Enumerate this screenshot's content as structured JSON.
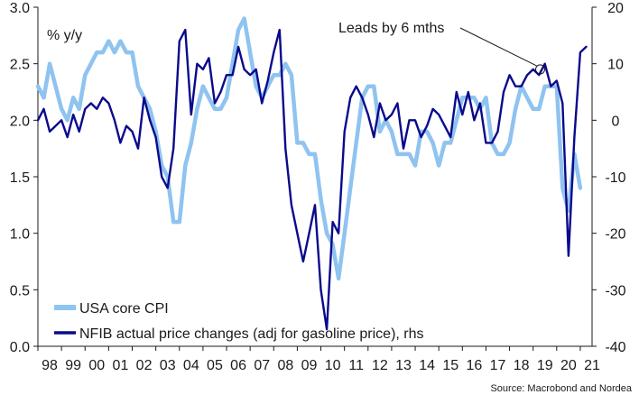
{
  "chart_data": {
    "type": "line",
    "ylabel_left": "% y/y",
    "ylim_left": [
      0.0,
      3.0
    ],
    "yticks_left": [
      "0.0",
      "0.5",
      "1.0",
      "1.5",
      "2.0",
      "2.5",
      "3.0"
    ],
    "ylim_right": [
      -40,
      20
    ],
    "yticks_right": [
      "-40",
      "-30",
      "-20",
      "-10",
      "0",
      "10",
      "20"
    ],
    "xlim": [
      1998.0,
      2021.5
    ],
    "xticks": [
      "98",
      "99",
      "00",
      "01",
      "02",
      "03",
      "04",
      "05",
      "06",
      "07",
      "08",
      "09",
      "10",
      "11",
      "12",
      "13",
      "14",
      "15",
      "16",
      "17",
      "18",
      "19",
      "20",
      "21"
    ],
    "grid": false,
    "legend_position": "bottom-left",
    "annotation": {
      "text": "Leads by 6 mths",
      "x": 2019.3,
      "y_right": 9
    },
    "source": "Source: Macrobond and Nordea",
    "colors": {
      "core_cpi": "#8fc3f0",
      "nfib": "#0a0a8c"
    },
    "series": [
      {
        "name": "USA core CPI",
        "axis": "left",
        "x": [
          1998.0,
          1998.25,
          1998.5,
          1998.75,
          1999.0,
          1999.25,
          1999.5,
          1999.75,
          2000.0,
          2000.25,
          2000.5,
          2000.75,
          2001.0,
          2001.25,
          2001.5,
          2001.75,
          2002.0,
          2002.25,
          2002.5,
          2002.75,
          2003.0,
          2003.25,
          2003.5,
          2003.75,
          2004.0,
          2004.25,
          2004.5,
          2004.75,
          2005.0,
          2005.25,
          2005.5,
          2005.75,
          2006.0,
          2006.25,
          2006.5,
          2006.75,
          2007.0,
          2007.25,
          2007.5,
          2007.75,
          2008.0,
          2008.25,
          2008.5,
          2008.75,
          2009.0,
          2009.25,
          2009.5,
          2009.75,
          2010.0,
          2010.25,
          2010.5,
          2010.75,
          2011.0,
          2011.25,
          2011.5,
          2011.75,
          2012.0,
          2012.25,
          2012.5,
          2012.75,
          2013.0,
          2013.25,
          2013.5,
          2013.75,
          2014.0,
          2014.25,
          2014.5,
          2014.75,
          2015.0,
          2015.25,
          2015.5,
          2015.75,
          2016.0,
          2016.25,
          2016.5,
          2016.75,
          2017.0,
          2017.25,
          2017.5,
          2017.75,
          2018.0,
          2018.25,
          2018.5,
          2018.75,
          2019.0,
          2019.25,
          2019.5,
          2019.75,
          2020.0,
          2020.25,
          2020.5,
          2020.75,
          2021.0
        ],
        "y": [
          2.3,
          2.2,
          2.5,
          2.3,
          2.1,
          2.0,
          2.2,
          2.1,
          2.4,
          2.5,
          2.6,
          2.6,
          2.7,
          2.6,
          2.7,
          2.6,
          2.6,
          2.3,
          2.2,
          2.1,
          1.9,
          1.6,
          1.5,
          1.1,
          1.1,
          1.6,
          1.8,
          2.1,
          2.3,
          2.2,
          2.1,
          2.1,
          2.2,
          2.5,
          2.8,
          2.9,
          2.6,
          2.3,
          2.2,
          2.3,
          2.4,
          2.4,
          2.5,
          2.4,
          1.8,
          1.8,
          1.7,
          1.7,
          1.3,
          1.0,
          0.9,
          0.6,
          1.0,
          1.4,
          1.8,
          2.2,
          2.3,
          2.3,
          1.9,
          2.0,
          1.9,
          1.7,
          1.7,
          1.7,
          1.6,
          1.9,
          1.9,
          1.8,
          1.6,
          1.8,
          1.8,
          2.0,
          2.2,
          2.2,
          2.2,
          2.1,
          2.2,
          1.8,
          1.7,
          1.7,
          1.8,
          2.1,
          2.3,
          2.2,
          2.1,
          2.1,
          2.3,
          2.3,
          2.3,
          1.4,
          1.2,
          1.7,
          1.4
        ]
      },
      {
        "name": "NFIB actual price changes (adj for gasoline price), rhs",
        "axis": "right",
        "x": [
          1998.0,
          1998.25,
          1998.5,
          1998.75,
          1999.0,
          1999.25,
          1999.5,
          1999.75,
          2000.0,
          2000.25,
          2000.5,
          2000.75,
          2001.0,
          2001.25,
          2001.5,
          2001.75,
          2002.0,
          2002.25,
          2002.5,
          2002.75,
          2003.0,
          2003.25,
          2003.5,
          2003.75,
          2004.0,
          2004.25,
          2004.5,
          2004.75,
          2005.0,
          2005.25,
          2005.5,
          2005.75,
          2006.0,
          2006.25,
          2006.5,
          2006.75,
          2007.0,
          2007.25,
          2007.5,
          2007.75,
          2008.0,
          2008.25,
          2008.5,
          2008.75,
          2009.0,
          2009.25,
          2009.5,
          2009.75,
          2010.0,
          2010.25,
          2010.5,
          2010.75,
          2011.0,
          2011.25,
          2011.5,
          2011.75,
          2012.0,
          2012.25,
          2012.5,
          2012.75,
          2013.0,
          2013.25,
          2013.5,
          2013.75,
          2014.0,
          2014.25,
          2014.5,
          2014.75,
          2015.0,
          2015.25,
          2015.5,
          2015.75,
          2016.0,
          2016.25,
          2016.5,
          2016.75,
          2017.0,
          2017.25,
          2017.5,
          2017.75,
          2018.0,
          2018.25,
          2018.5,
          2018.75,
          2019.0,
          2019.25,
          2019.5,
          2019.75,
          2020.0,
          2020.25,
          2020.5,
          2020.75,
          2021.0,
          2021.25
        ],
        "y": [
          0,
          2,
          -2,
          -1,
          0,
          -3,
          1,
          -2,
          2,
          3,
          2,
          4,
          3,
          0,
          -4,
          -1,
          -2,
          -5,
          4,
          0,
          -3,
          -10,
          -12,
          -5,
          14,
          16,
          1,
          10,
          9,
          11,
          3,
          5,
          8,
          8,
          13,
          9,
          8,
          9,
          3,
          7,
          12,
          16,
          -5,
          -15,
          -20,
          -25,
          -20,
          -15,
          -30,
          -37,
          -18,
          -20,
          -2,
          4,
          6,
          4,
          1,
          -3,
          3,
          0,
          1,
          3,
          -5,
          0,
          0,
          -3,
          -1,
          2,
          1,
          -1,
          -3,
          5,
          1,
          5,
          0,
          3,
          -4,
          -4,
          -2,
          5,
          8,
          6,
          6,
          8,
          9,
          8,
          10,
          6,
          7,
          3,
          -24,
          -3,
          12,
          13
        ]
      }
    ]
  }
}
